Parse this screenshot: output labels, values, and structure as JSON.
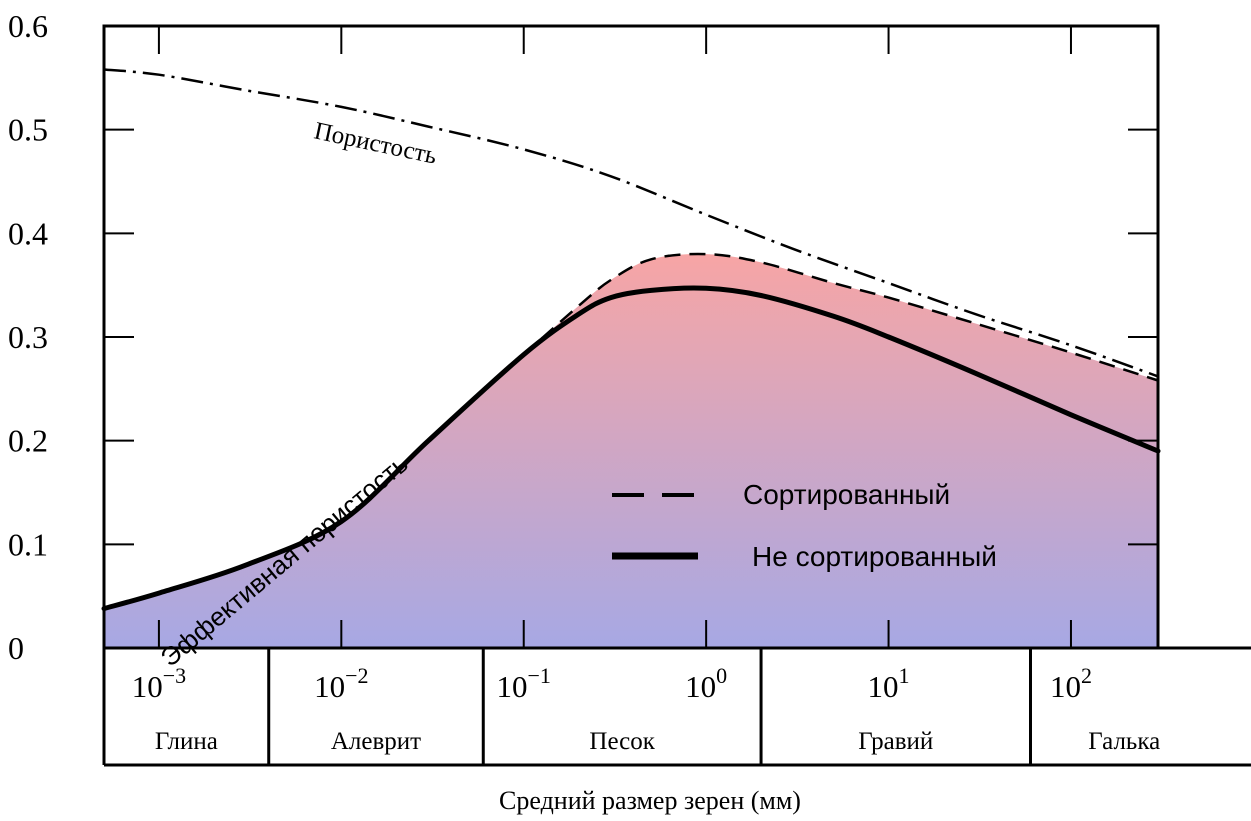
{
  "chart_data": {
    "type": "line",
    "xscale": "log",
    "xlim": [
      0.0005,
      300
    ],
    "ylim": [
      0,
      0.6
    ],
    "xlabel": "Средний размер зерен (мм)",
    "ylabel": "",
    "grid": false,
    "legend_position": "center",
    "y_ticks": [
      "0",
      "0.1",
      "0.2",
      "0.3",
      "0.4",
      "0.5",
      "0.6"
    ],
    "x_tick_values": [
      0.001,
      0.01,
      0.1,
      1,
      10,
      100
    ],
    "x_tick_bases": [
      "10",
      "10",
      "10",
      "10",
      "10",
      "10"
    ],
    "x_tick_exponents": [
      "−3",
      "−2",
      "−1",
      "0",
      "1",
      "2"
    ],
    "classes": [
      {
        "label": "Глина",
        "from": 0.0005,
        "to": 0.004
      },
      {
        "label": "Алеврит",
        "from": 0.004,
        "to": 0.06
      },
      {
        "label": "Песок",
        "from": 0.06,
        "to": 2
      },
      {
        "label": "Гравий",
        "from": 2,
        "to": 60
      },
      {
        "label": "Галька",
        "from": 60,
        "to": 300
      }
    ],
    "series": [
      {
        "key": "porosity",
        "style": "dash-dot",
        "color": "#000000",
        "x": [
          0.0005,
          0.001,
          0.003,
          0.01,
          0.03,
          0.1,
          0.3,
          1,
          3,
          10,
          30,
          100,
          300
        ],
        "y": [
          0.558,
          0.553,
          0.538,
          0.522,
          0.503,
          0.481,
          0.455,
          0.418,
          0.385,
          0.352,
          0.322,
          0.292,
          0.262
        ]
      },
      {
        "key": "sorted",
        "name": "Сортированный",
        "style": "dashed",
        "color": "#000000",
        "x": [
          0.0005,
          0.001,
          0.003,
          0.01,
          0.03,
          0.1,
          0.2,
          0.3,
          0.5,
          1,
          2,
          5,
          10,
          30,
          100,
          300
        ],
        "y": [
          0.038,
          0.053,
          0.08,
          0.122,
          0.2,
          0.283,
          0.33,
          0.355,
          0.375,
          0.38,
          0.372,
          0.352,
          0.338,
          0.313,
          0.285,
          0.258
        ]
      },
      {
        "key": "unsorted",
        "name": "Не сортированный",
        "style": "solid-bold",
        "color": "#000000",
        "x": [
          0.0005,
          0.001,
          0.003,
          0.01,
          0.03,
          0.1,
          0.2,
          0.3,
          0.5,
          1,
          2,
          5,
          10,
          30,
          100,
          300
        ],
        "y": [
          0.038,
          0.053,
          0.08,
          0.122,
          0.2,
          0.283,
          0.322,
          0.338,
          0.345,
          0.347,
          0.34,
          0.32,
          0.3,
          0.265,
          0.225,
          0.19
        ]
      }
    ],
    "curve_labels": {
      "porosity": "Пористость",
      "effective": "Эффективная пористость"
    },
    "fill": {
      "top_color": "#f7a5a5",
      "bottom_color": "#a7a8e4"
    }
  }
}
